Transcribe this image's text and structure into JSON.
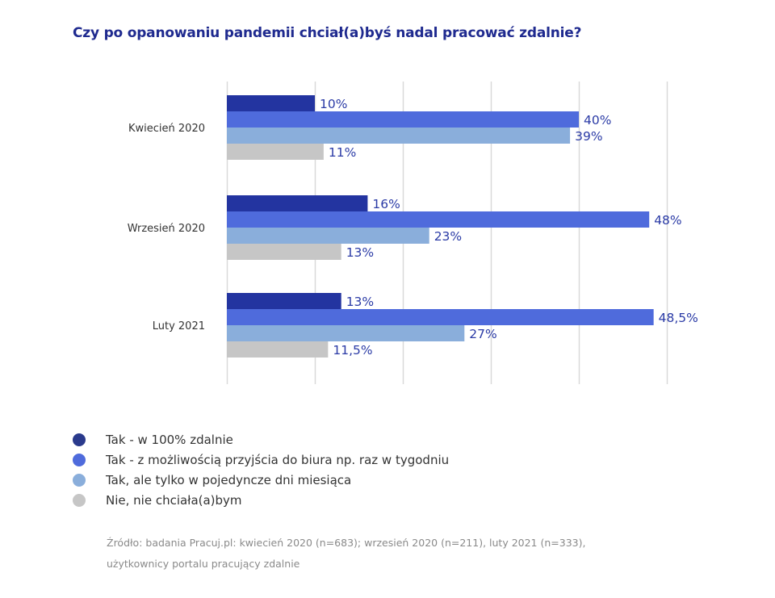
{
  "chart_data": {
    "type": "bar",
    "orientation": "horizontal",
    "title": "Czy po opanowaniu pandemii chciał(a)byś nadal pracować zdalnie?",
    "xlabel": "",
    "ylabel": "",
    "xlim": [
      0,
      50
    ],
    "grid": true,
    "gridlines": [
      0,
      10,
      20,
      30,
      40,
      50
    ],
    "categories": [
      "Kwiecień 2020",
      "Wrzesień 2020",
      "Luty 2021"
    ],
    "series": [
      {
        "name": "Tak - w 100% zdalnie",
        "color": "#2334A0",
        "values": [
          10,
          16,
          13
        ],
        "labels": [
          "10%",
          "16%",
          "13%"
        ]
      },
      {
        "name": "Tak - z możliwością przyjścia do biura np. raz w tygodniu",
        "color": "#4F6BDC",
        "values": [
          40,
          48,
          48.5
        ],
        "labels": [
          "40%",
          "48%",
          "48,5%"
        ]
      },
      {
        "name": "Tak, ale tylko w pojedyncze dni miesiąca",
        "color": "#8AAEDB",
        "values": [
          39,
          23,
          27
        ],
        "labels": [
          "39%",
          "23%",
          "27%"
        ]
      },
      {
        "name": "Nie, nie chciała(a)bym",
        "color": "#C6C6C6",
        "values": [
          11,
          13,
          11.5
        ],
        "labels": [
          "11%",
          "13%",
          "11,5%"
        ]
      }
    ],
    "legend_position": "bottom-left",
    "label_color": "#2B3BA6",
    "gridline_color": "#d9d9d9"
  },
  "legend_dot_colors": [
    "#2A3A8C",
    "#4F6BDC",
    "#8AAEDB",
    "#C6C6C6"
  ],
  "source": {
    "line1": "Źródło: badania Pracuj.pl: kwiecień 2020 (n=683); wrzesień 2020 (n=211), luty 2021 (n=333),",
    "line2": "użytkownicy portalu pracujący zdalnie"
  }
}
